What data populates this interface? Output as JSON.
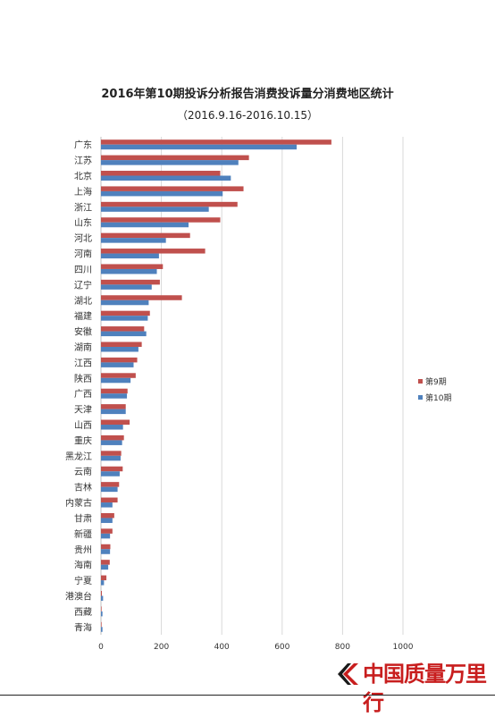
{
  "chart_data": {
    "type": "bar",
    "orientation": "horizontal",
    "title": "2016年第10期投诉分析报告消费投诉量分消费地区统计",
    "subtitle": "（2016.9.16-2016.10.15）",
    "categories": [
      "广东",
      "江苏",
      "北京",
      "上海",
      "浙江",
      "山东",
      "河北",
      "河南",
      "四川",
      "辽宁",
      "湖北",
      "福建",
      "安徽",
      "湖南",
      "江西",
      "陕西",
      "广西",
      "天津",
      "山西",
      "重庆",
      "黑龙江",
      "云南",
      "吉林",
      "内蒙古",
      "甘肃",
      "新疆",
      "贵州",
      "海南",
      "宁夏",
      "港澳台",
      "西藏",
      "青海"
    ],
    "series": [
      {
        "name": "第9期",
        "color": "#c0504d",
        "values": [
          763,
          490,
          395,
          472,
          452,
          395,
          295,
          345,
          205,
          195,
          268,
          162,
          143,
          135,
          120,
          115,
          88,
          82,
          95,
          76,
          67,
          72,
          60,
          55,
          44,
          38,
          31,
          29,
          18,
          3,
          2,
          2
        ]
      },
      {
        "name": "第10期",
        "color": "#4f81bd",
        "values": [
          648,
          455,
          430,
          403,
          357,
          290,
          215,
          192,
          185,
          168,
          158,
          155,
          150,
          124,
          108,
          98,
          86,
          82,
          73,
          70,
          65,
          62,
          55,
          38,
          38,
          30,
          30,
          24,
          10,
          7,
          5,
          5
        ]
      }
    ],
    "xlim": [
      0,
      1000
    ],
    "xticks": [
      0,
      200,
      400,
      600,
      800,
      1000
    ],
    "grid": true,
    "legend": "right"
  },
  "watermark": {
    "text": "中国质量万里行",
    "icon": "brand-logo-icon",
    "color": "#c81e1e"
  }
}
